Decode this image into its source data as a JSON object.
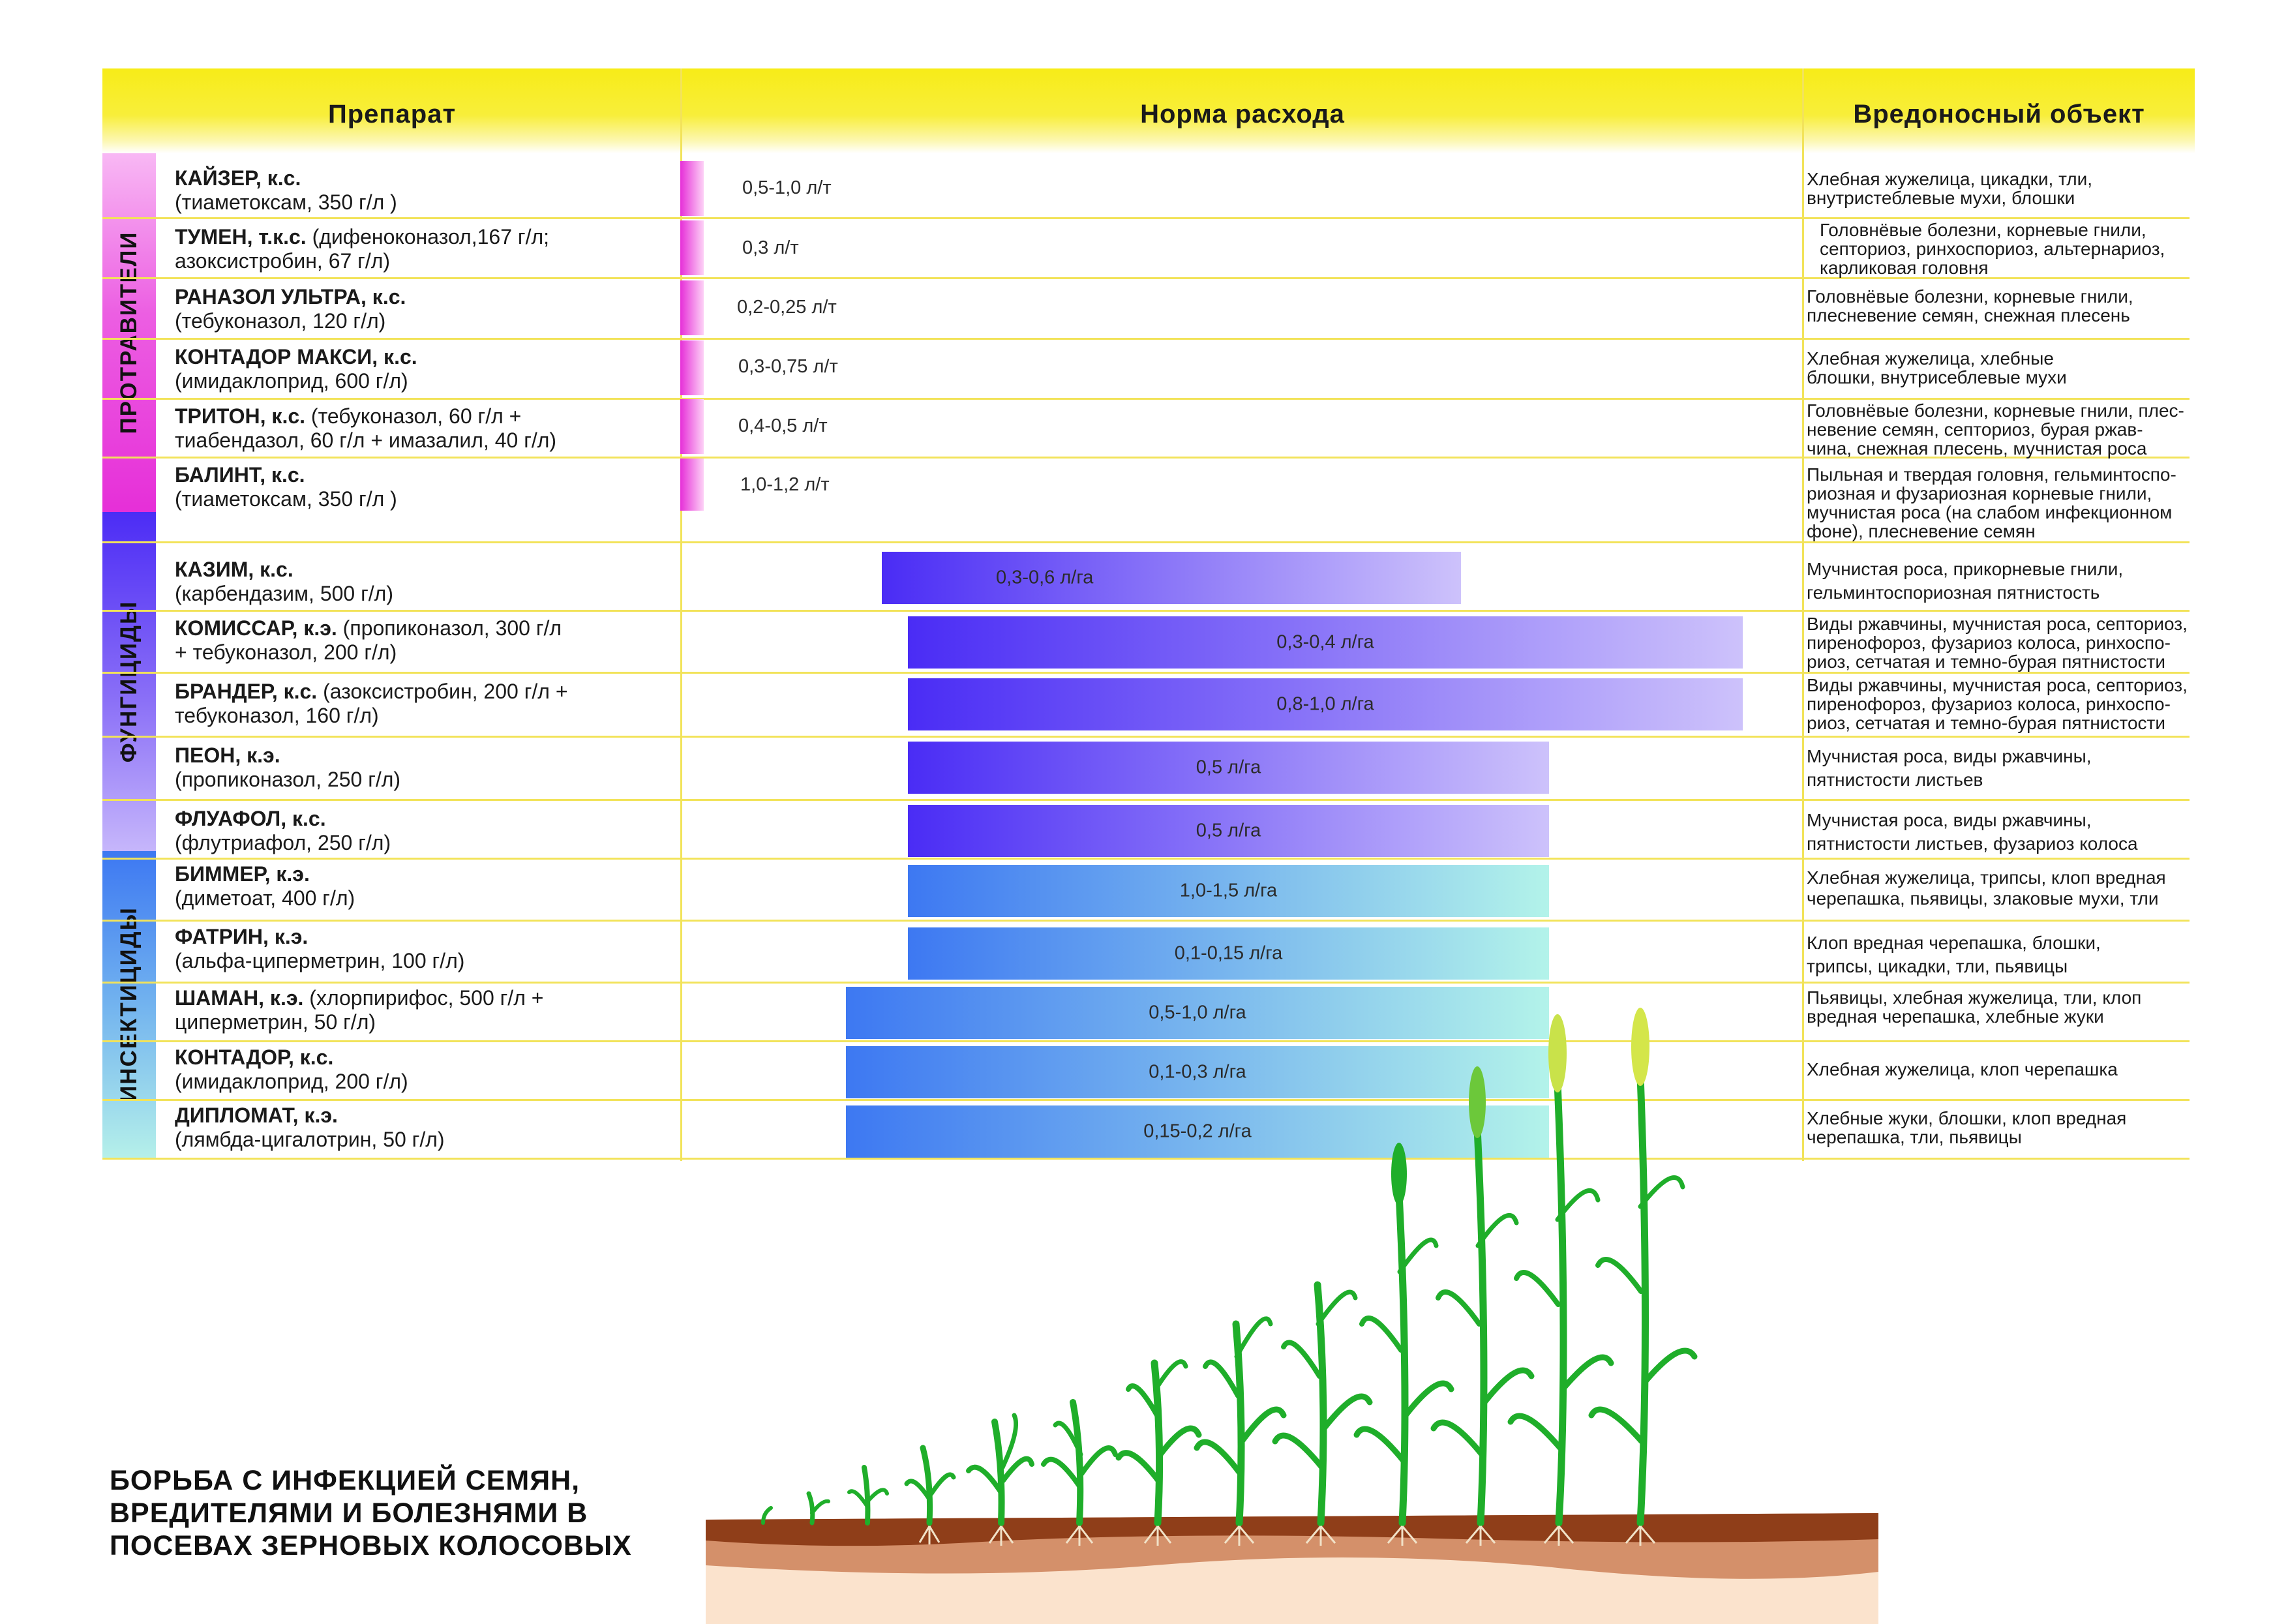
{
  "header": {
    "col_product": "Препарат",
    "col_rate": "Норма расхода",
    "col_target": "Вредоносный объект"
  },
  "categories": {
    "seed": "ПРОТРАВИТЕЛИ",
    "fungicides": "ФУНГИЦИДЫ",
    "insecticides": "ИНСЕКТИЦИДЫ"
  },
  "rows": [
    {
      "name": "КАЙЗЕР, к.с.",
      "line1_rest": "",
      "line2": "(тиаметоксам, 350 г/л )",
      "rate": "0,5-1,0 л/т",
      "target_lines": [
        "Хлебная жужелица, цикадки, тли,",
        "внутристеблевые мухи, блошки"
      ]
    },
    {
      "name": "ТУМЕН, т.к.с.",
      "line1_rest": " (дифеноконазол,167 г/л;",
      "line2": "азоксистробин, 67 г/л)",
      "rate": "0,3 л/т",
      "target_lines": [
        "Головнёвые болезни, корневые гнили,",
        "септориоз, ринхоспориоз, альтернариоз,",
        "карликовая головня"
      ]
    },
    {
      "name": "РАНАЗОЛ УЛЬТРА, к.с.",
      "line1_rest": "",
      "line2": "(тебуконазол, 120 г/л)",
      "rate": "0,2-0,25 л/т",
      "target_lines": [
        "Головнёвые болезни, корневые гнили,",
        "плесневение семян, снежная плесень"
      ]
    },
    {
      "name": "КОНТАДОР МАКСИ, к.с.",
      "line1_rest": "",
      "line2": "(имидаклоприд, 600 г/л)",
      "rate": "0,3-0,75 л/т",
      "target_lines": [
        "Хлебная жужелица, хлебные",
        "блошки, внутрисеблевые мухи"
      ]
    },
    {
      "name": "ТРИТОН, к.с.",
      "line1_rest": " (тебуконазол, 60 г/л +",
      "line2": "тиабендазол, 60 г/л + имазалил, 40 г/л)",
      "rate": "0,4-0,5 л/т",
      "target_lines": [
        "Головнёвые болезни, корневые гнили, плес-",
        "невение семян, септориоз, бурая ржав-",
        "чина, снежная плесень, мучнистая роса"
      ]
    },
    {
      "name": "БАЛИНТ, к.с.",
      "line1_rest": "",
      "line2": "(тиаметоксам, 350 г/л )",
      "rate": "1,0-1,2 л/т",
      "target_lines": [
        "Пыльная и твердая головня, гельминтоспо-",
        "риозная и фузариозная корневые гнили,",
        "мучнистая роса (на слабом инфекционном",
        "фоне), плесневение семян"
      ]
    },
    {
      "name": "КАЗИМ, к.с.",
      "line1_rest": "",
      "line2": "(карбендазим, 500 г/л)",
      "rate": "0,3-0,6 л/га",
      "target_lines": [
        "Мучнистая роса, прикорневые гнили,",
        "гельминтоспориозная пятнистость"
      ]
    },
    {
      "name": "КОМИССАР, к.э.",
      "line1_rest": " (пропиконазол, 300 г/л",
      "line2": " + тебуконазол, 200 г/л)",
      "rate": "0,3-0,4 л/га",
      "target_lines": [
        "Виды ржавчины, мучнистая роса, септориоз,",
        "пиренофороз, фузариоз колоса, ринхоспо-",
        "риоз, сетчатая и темно-бурая пятнистости"
      ]
    },
    {
      "name": "БРАНДЕР, к.с.",
      "line1_rest": " (азоксистробин, 200 г/л +",
      "line2": "тебуконазол, 160 г/л)",
      "rate": "0,8-1,0 л/га",
      "target_lines": [
        "Виды ржавчины, мучнистая роса, септориоз,",
        "пиренофороз, фузариоз колоса, ринхоспо-",
        "риоз, сетчатая и темно-бурая пятнистости"
      ]
    },
    {
      "name": "ПЕОН, к.э.",
      "line1_rest": "",
      "line2": "(пропиконазол, 250 г/л)",
      "rate": "0,5 л/га",
      "target_lines": [
        "Мучнистая роса, виды ржавчины,",
        "пятнистости листьев"
      ]
    },
    {
      "name": "ФЛУАФОЛ, к.с.",
      "line1_rest": "",
      "line2": "(флутриафол, 250 г/л)",
      "rate": "0,5 л/га",
      "target_lines": [
        "Мучнистая роса, виды ржавчины,",
        "пятнистости листьев, фузариоз колоса"
      ]
    },
    {
      "name": "БИММЕР, к.э.",
      "line1_rest": "",
      "line2": "(диметоат, 400 г/л)",
      "rate": "1,0-1,5 л/га",
      "target_lines": [
        "Хлебная жужелица, трипсы, клоп вредная",
        "черепашка, пьявицы, злаковые мухи, тли"
      ]
    },
    {
      "name": "ФАТРИН, к.э.",
      "line1_rest": "",
      "line2": "(альфа-циперметрин, 100 г/л)",
      "rate": "0,1-0,15 л/га",
      "target_lines": [
        "Клоп вредная черепашка, блошки,",
        "трипсы, цикадки, тли, пьявицы"
      ]
    },
    {
      "name": "ШАМАН, к.э.",
      "line1_rest": " (хлорпирифос, 500 г/л +",
      "line2": "циперметрин, 50 г/л)",
      "rate": "0,5-1,0 л/га",
      "target_lines": [
        "Пьявицы, хлебная жужелица, тли, клоп",
        "вредная черепашка, хлебные жуки"
      ]
    },
    {
      "name": "КОНТАДОР, к.с.",
      "line1_rest": "",
      "line2": "(имидаклоприд, 200 г/л)",
      "rate": "0,1-0,3 л/га",
      "target_lines": [
        "Хлебная жужелица, клоп черепашка"
      ]
    },
    {
      "name": "ДИПЛОМАТ, к.э.",
      "line1_rest": "",
      "line2": "(лямбда-цигалотрин, 50 г/л)",
      "rate": "0,15-0,2 л/га",
      "target_lines": [
        "Хлебные жуки, блошки, клоп вредная",
        "черепашка, тли, пьявицы"
      ]
    }
  ],
  "title_lines": [
    "БОРЬБА С ИНФЕКЦИЕЙ СЕМЯН,",
    "ВРЕДИТЕЛЯМИ И БОЛЕЗНЯМИ В",
    "ПОСЕВАХ ЗЕРНОВЫХ КОЛОСОВЫХ"
  ],
  "colors": {
    "header_yellow": "#f7ec18",
    "grid_line": "#f2e35a",
    "seed_pink": "#e62fd8",
    "fungicide_violet": "#4a2cf5",
    "insecticide_blue": "#3d78f2",
    "insecticide_cyan": "#b3f3ea",
    "soil_top": "#8a3a17",
    "soil_mid": "#c98258",
    "soil_bottom": "#f8dcc0",
    "plant_green": "#1fae2a",
    "ear_yellow": "#d4e64a"
  }
}
